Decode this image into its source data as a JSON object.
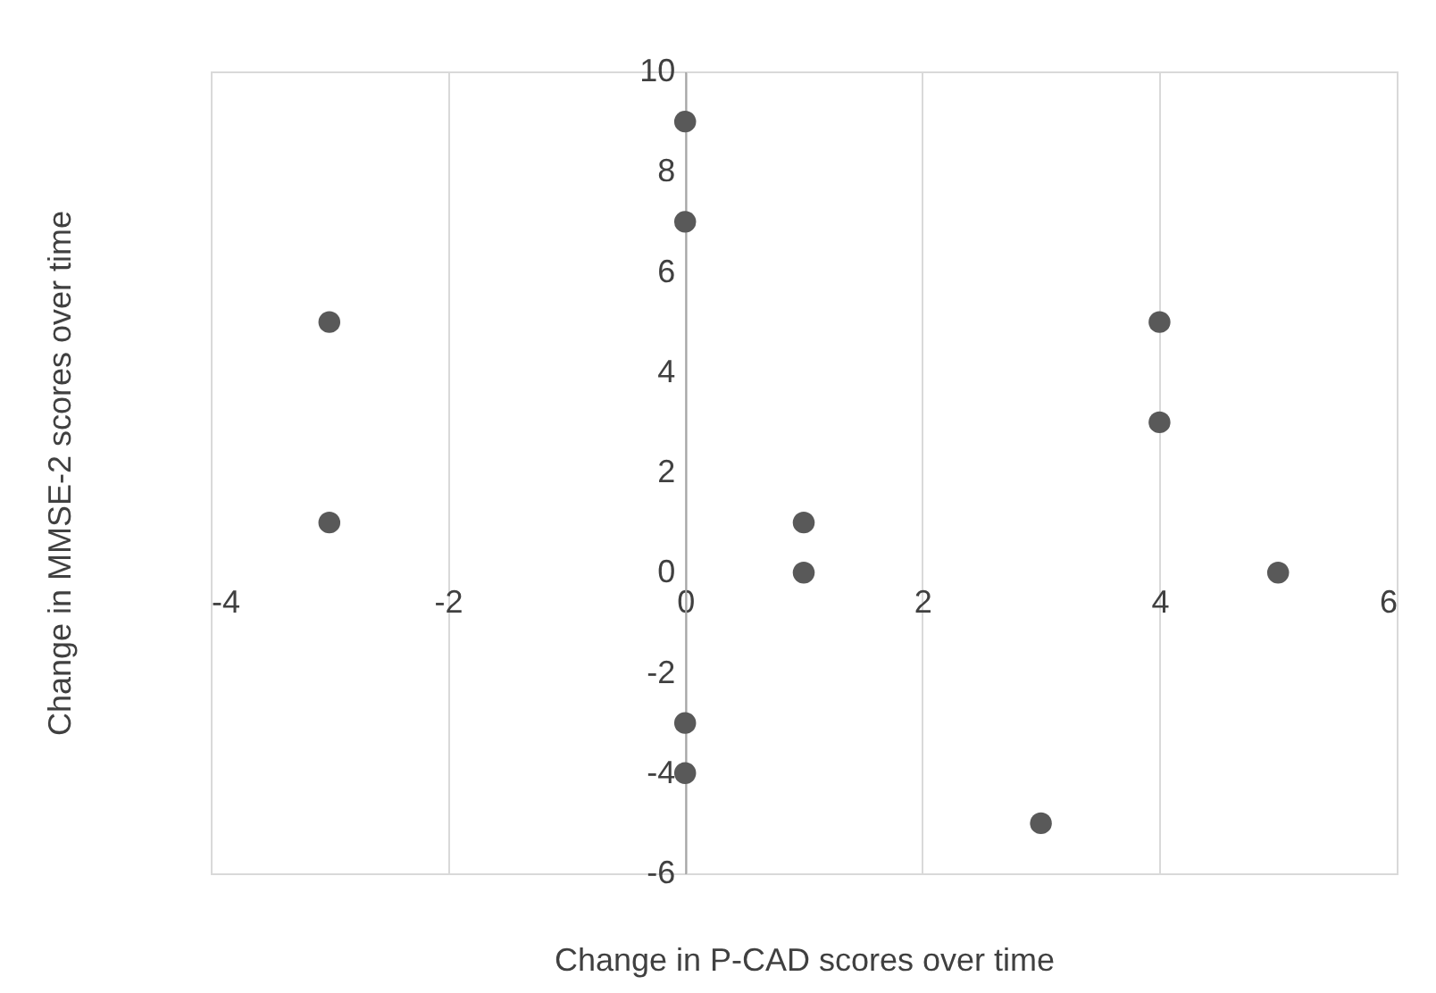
{
  "chart_data": {
    "type": "scatter",
    "xlabel": "Change in P-CAD scores over time",
    "ylabel": "Change in MMSE-2 scores over time",
    "x": [
      -3,
      -3,
      0,
      0,
      1,
      1,
      4,
      4,
      5,
      0,
      0,
      3
    ],
    "series": [
      {
        "color": "#595959",
        "values": [
          5,
          1,
          9,
          7,
          1,
          0,
          5,
          3,
          0,
          -3,
          -4,
          -5
        ]
      }
    ],
    "xlim": [
      -4,
      6
    ],
    "xticks": [
      -4,
      -2,
      0,
      2,
      4,
      6
    ],
    "ylim": [
      -6,
      10
    ],
    "yticks": [
      -6,
      -4,
      -2,
      0,
      2,
      4,
      6,
      8,
      10
    ],
    "grid": "x",
    "marker": "circle"
  }
}
